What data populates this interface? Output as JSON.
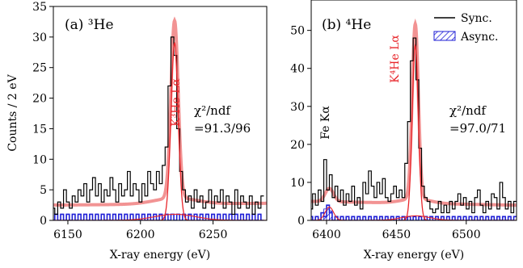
{
  "colors": {
    "sync": "#000000",
    "async": "#1f1fd6",
    "fit_total": "#f08080",
    "fit_component": "#e8262b",
    "annotation_red": "#e8262b"
  },
  "figure": {
    "ylabel": "Counts / 2 eV",
    "xlabel": "X-ray energy (eV)"
  },
  "chart_data": [
    {
      "type": "line",
      "panel": "a",
      "title": "(a) ³He",
      "xlim": [
        6140,
        6287
      ],
      "ylim": [
        0,
        35
      ],
      "xticks": [
        6150,
        6200,
        6250
      ],
      "yticks": [
        0,
        5,
        10,
        15,
        20,
        25,
        30,
        35
      ],
      "peak_label": "K³He Lα",
      "chi_label": "χ²/ndf",
      "chi_value": "=91.3/96",
      "sync": [
        [
          6140,
          2
        ],
        [
          6142,
          1
        ],
        [
          6144,
          3
        ],
        [
          6146,
          2
        ],
        [
          6148,
          5
        ],
        [
          6150,
          3
        ],
        [
          6152,
          2
        ],
        [
          6154,
          4
        ],
        [
          6156,
          3
        ],
        [
          6158,
          5
        ],
        [
          6160,
          4
        ],
        [
          6162,
          6
        ],
        [
          6164,
          3
        ],
        [
          6166,
          5
        ],
        [
          6168,
          7
        ],
        [
          6170,
          4
        ],
        [
          6172,
          6
        ],
        [
          6174,
          3
        ],
        [
          6176,
          5
        ],
        [
          6178,
          4
        ],
        [
          6180,
          7
        ],
        [
          6182,
          5
        ],
        [
          6184,
          3
        ],
        [
          6186,
          6
        ],
        [
          6188,
          4
        ],
        [
          6190,
          5
        ],
        [
          6192,
          8
        ],
        [
          6194,
          4
        ],
        [
          6196,
          6
        ],
        [
          6198,
          5
        ],
        [
          6200,
          3
        ],
        [
          6202,
          6
        ],
        [
          6204,
          4
        ],
        [
          6206,
          8
        ],
        [
          6208,
          6
        ],
        [
          6210,
          5
        ],
        [
          6212,
          8
        ],
        [
          6214,
          6
        ],
        [
          6216,
          9
        ],
        [
          6218,
          12
        ],
        [
          6220,
          22
        ],
        [
          6222,
          30
        ],
        [
          6224,
          27
        ],
        [
          6226,
          15
        ],
        [
          6228,
          8
        ],
        [
          6230,
          5
        ],
        [
          6232,
          3
        ],
        [
          6234,
          4
        ],
        [
          6236,
          2
        ],
        [
          6238,
          5
        ],
        [
          6240,
          3
        ],
        [
          6242,
          4
        ],
        [
          6244,
          2
        ],
        [
          6246,
          3
        ],
        [
          6248,
          5
        ],
        [
          6250,
          2
        ],
        [
          6252,
          4
        ],
        [
          6254,
          3
        ],
        [
          6256,
          5
        ],
        [
          6258,
          2
        ],
        [
          6260,
          4
        ],
        [
          6262,
          3
        ],
        [
          6264,
          1
        ],
        [
          6266,
          5
        ],
        [
          6268,
          2
        ],
        [
          6270,
          4
        ],
        [
          6272,
          3
        ],
        [
          6274,
          2
        ],
        [
          6276,
          4
        ],
        [
          6278,
          1
        ],
        [
          6280,
          3
        ],
        [
          6282,
          2
        ],
        [
          6284,
          4
        ]
      ],
      "async": [
        [
          6140,
          0
        ],
        [
          6142,
          1
        ],
        [
          6144,
          0
        ],
        [
          6146,
          1
        ],
        [
          6148,
          0
        ],
        [
          6150,
          1
        ],
        [
          6152,
          0
        ],
        [
          6154,
          1
        ],
        [
          6156,
          0
        ],
        [
          6158,
          1
        ],
        [
          6160,
          0
        ],
        [
          6162,
          1
        ],
        [
          6164,
          0
        ],
        [
          6166,
          1
        ],
        [
          6168,
          0
        ],
        [
          6170,
          1
        ],
        [
          6172,
          0
        ],
        [
          6174,
          1
        ],
        [
          6176,
          0
        ],
        [
          6178,
          1
        ],
        [
          6180,
          0
        ],
        [
          6182,
          1
        ],
        [
          6184,
          0
        ],
        [
          6186,
          1
        ],
        [
          6188,
          0
        ],
        [
          6190,
          1
        ],
        [
          6192,
          0
        ],
        [
          6194,
          1
        ],
        [
          6196,
          0
        ],
        [
          6198,
          1
        ],
        [
          6200,
          0
        ],
        [
          6202,
          1
        ],
        [
          6204,
          0
        ],
        [
          6206,
          1
        ],
        [
          6208,
          0
        ],
        [
          6210,
          1
        ],
        [
          6212,
          0
        ],
        [
          6214,
          1
        ],
        [
          6216,
          0
        ],
        [
          6218,
          1
        ],
        [
          6220,
          0
        ],
        [
          6222,
          1
        ],
        [
          6224,
          0
        ],
        [
          6226,
          1
        ],
        [
          6228,
          0
        ],
        [
          6230,
          1
        ],
        [
          6232,
          0
        ],
        [
          6234,
          1
        ],
        [
          6236,
          0
        ],
        [
          6238,
          1
        ],
        [
          6240,
          0
        ],
        [
          6242,
          1
        ],
        [
          6244,
          0
        ],
        [
          6246,
          1
        ],
        [
          6248,
          0
        ],
        [
          6250,
          1
        ],
        [
          6252,
          0
        ],
        [
          6254,
          1
        ],
        [
          6256,
          0
        ],
        [
          6258,
          1
        ],
        [
          6260,
          0
        ],
        [
          6262,
          1
        ],
        [
          6264,
          0
        ],
        [
          6266,
          1
        ],
        [
          6268,
          0
        ],
        [
          6270,
          1
        ],
        [
          6272,
          0
        ],
        [
          6274,
          1
        ],
        [
          6276,
          0
        ],
        [
          6278,
          1
        ],
        [
          6280,
          0
        ],
        [
          6282,
          1
        ],
        [
          6284,
          0
        ]
      ],
      "fit": {
        "baseline_start": 2.5,
        "baseline_end": 2.8,
        "peak_center": 6223.5,
        "peak_height": 29,
        "peak_sigma": 2.5,
        "tail_center": 6224,
        "tail_height": 1.0,
        "tail_sigma": 14
      }
    },
    {
      "type": "line",
      "panel": "b",
      "title": "(b) ⁴He",
      "xlim": [
        6389,
        6536
      ],
      "ylim": [
        0,
        58
      ],
      "xticks": [
        6400,
        6450,
        6500
      ],
      "yticks": [
        0,
        10,
        20,
        30,
        40,
        50
      ],
      "peak_label": "K⁴He Lα",
      "fe_label": "Fe Kα",
      "chi_label": "χ²/ndf",
      "chi_value": "=97.0/71",
      "legend": [
        "Sync.",
        "Async."
      ],
      "legend_position": "top-right",
      "sync": [
        [
          6389,
          3
        ],
        [
          6391,
          7
        ],
        [
          6393,
          4
        ],
        [
          6395,
          8
        ],
        [
          6397,
          5
        ],
        [
          6399,
          16
        ],
        [
          6401,
          8
        ],
        [
          6403,
          12
        ],
        [
          6405,
          6
        ],
        [
          6407,
          9
        ],
        [
          6409,
          5
        ],
        [
          6411,
          8
        ],
        [
          6413,
          4
        ],
        [
          6415,
          7
        ],
        [
          6417,
          5
        ],
        [
          6419,
          9
        ],
        [
          6421,
          4
        ],
        [
          6423,
          6
        ],
        [
          6425,
          3
        ],
        [
          6427,
          10
        ],
        [
          6429,
          7
        ],
        [
          6431,
          13
        ],
        [
          6433,
          9
        ],
        [
          6435,
          6
        ],
        [
          6437,
          10
        ],
        [
          6439,
          7
        ],
        [
          6441,
          11
        ],
        [
          6443,
          6
        ],
        [
          6445,
          5
        ],
        [
          6447,
          7
        ],
        [
          6449,
          9
        ],
        [
          6451,
          6
        ],
        [
          6453,
          8
        ],
        [
          6455,
          6
        ],
        [
          6457,
          15
        ],
        [
          6459,
          26
        ],
        [
          6461,
          42
        ],
        [
          6463,
          48
        ],
        [
          6465,
          37
        ],
        [
          6467,
          19
        ],
        [
          6469,
          9
        ],
        [
          6471,
          6
        ],
        [
          6473,
          5
        ],
        [
          6475,
          3
        ],
        [
          6477,
          2
        ],
        [
          6479,
          3
        ],
        [
          6481,
          5
        ],
        [
          6483,
          2
        ],
        [
          6485,
          4
        ],
        [
          6487,
          2
        ],
        [
          6489,
          5
        ],
        [
          6491,
          3
        ],
        [
          6493,
          5
        ],
        [
          6495,
          7
        ],
        [
          6497,
          4
        ],
        [
          6499,
          6
        ],
        [
          6501,
          3
        ],
        [
          6503,
          5
        ],
        [
          6505,
          2
        ],
        [
          6507,
          6
        ],
        [
          6509,
          8
        ],
        [
          6511,
          4
        ],
        [
          6513,
          2
        ],
        [
          6515,
          5
        ],
        [
          6517,
          3
        ],
        [
          6519,
          7
        ],
        [
          6521,
          6
        ],
        [
          6523,
          3
        ],
        [
          6525,
          10
        ],
        [
          6527,
          6
        ],
        [
          6529,
          3
        ],
        [
          6531,
          5
        ],
        [
          6533,
          2
        ],
        [
          6535,
          5
        ]
      ],
      "async": [
        [
          6389,
          1
        ],
        [
          6391,
          0
        ],
        [
          6393,
          1
        ],
        [
          6395,
          0
        ],
        [
          6397,
          2
        ],
        [
          6399,
          1
        ],
        [
          6401,
          4
        ],
        [
          6403,
          2
        ],
        [
          6405,
          0
        ],
        [
          6407,
          1
        ],
        [
          6409,
          0
        ],
        [
          6411,
          1
        ],
        [
          6413,
          0
        ],
        [
          6415,
          1
        ],
        [
          6417,
          0
        ],
        [
          6419,
          1
        ],
        [
          6421,
          0
        ],
        [
          6423,
          1
        ],
        [
          6425,
          0
        ],
        [
          6427,
          1
        ],
        [
          6429,
          0
        ],
        [
          6431,
          1
        ],
        [
          6433,
          0
        ],
        [
          6435,
          1
        ],
        [
          6437,
          0
        ],
        [
          6439,
          1
        ],
        [
          6441,
          0
        ],
        [
          6443,
          1
        ],
        [
          6445,
          0
        ],
        [
          6447,
          1
        ],
        [
          6449,
          0
        ],
        [
          6451,
          1
        ],
        [
          6453,
          0
        ],
        [
          6455,
          1
        ],
        [
          6457,
          0
        ],
        [
          6459,
          1
        ],
        [
          6461,
          0
        ],
        [
          6463,
          1
        ],
        [
          6465,
          0
        ],
        [
          6467,
          1
        ],
        [
          6469,
          0
        ],
        [
          6471,
          1
        ],
        [
          6473,
          0
        ],
        [
          6475,
          1
        ],
        [
          6477,
          0
        ],
        [
          6479,
          1
        ],
        [
          6481,
          0
        ],
        [
          6483,
          1
        ],
        [
          6485,
          0
        ],
        [
          6487,
          1
        ],
        [
          6489,
          0
        ],
        [
          6491,
          1
        ],
        [
          6493,
          0
        ],
        [
          6495,
          1
        ],
        [
          6497,
          0
        ],
        [
          6499,
          1
        ],
        [
          6501,
          0
        ],
        [
          6503,
          1
        ],
        [
          6505,
          0
        ],
        [
          6507,
          1
        ],
        [
          6509,
          0
        ],
        [
          6511,
          1
        ],
        [
          6513,
          0
        ],
        [
          6515,
          1
        ],
        [
          6517,
          0
        ],
        [
          6519,
          1
        ],
        [
          6521,
          0
        ],
        [
          6523,
          1
        ],
        [
          6525,
          0
        ],
        [
          6527,
          1
        ],
        [
          6529,
          0
        ],
        [
          6531,
          1
        ],
        [
          6533,
          0
        ],
        [
          6535,
          1
        ]
      ],
      "async_hatch": [
        [
          6399,
          0,
          3
        ],
        [
          6401,
          0,
          4
        ],
        [
          6403,
          0,
          2.5
        ]
      ],
      "fit": {
        "baseline_start": 5,
        "baseline_end": 4,
        "peak_center": 6463.5,
        "peak_height": 46,
        "peak_sigma": 2.2,
        "tail_center": 6464,
        "tail_height": 1.2,
        "tail_sigma": 10,
        "fe_center": 6402,
        "fe_height": 3.5,
        "fe_sigma": 3
      }
    }
  ]
}
